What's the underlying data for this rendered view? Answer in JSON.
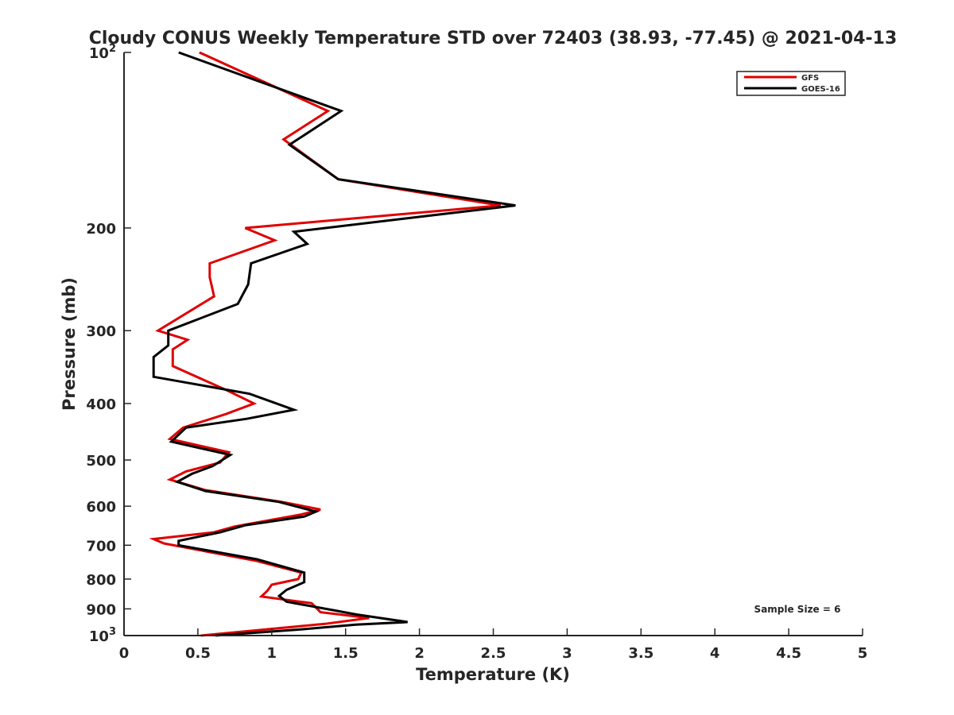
{
  "chart_data": {
    "type": "line",
    "title": "Cloudy CONUS Weekly Temperature STD over 72403 (38.93, -77.45) @ 2021-04-13",
    "xlabel": "Temperature (K)",
    "ylabel": "Pressure (mb)",
    "xlim": [
      0,
      5
    ],
    "ylim": [
      100,
      1000
    ],
    "yscale": "log",
    "y_reversed": true,
    "x_ticks": [
      "0",
      "0.5",
      "1",
      "1.5",
      "2",
      "2.5",
      "3",
      "3.5",
      "4",
      "4.5",
      "5"
    ],
    "y_ticks": [
      {
        "value": 100,
        "base": "10",
        "exp": "2"
      },
      {
        "value": 200,
        "label": "200"
      },
      {
        "value": 300,
        "label": "300"
      },
      {
        "value": 400,
        "label": "400"
      },
      {
        "value": 500,
        "label": "500"
      },
      {
        "value": 600,
        "label": "600"
      },
      {
        "value": 700,
        "label": "700"
      },
      {
        "value": 800,
        "label": "800"
      },
      {
        "value": 900,
        "label": "900"
      },
      {
        "value": 1000,
        "base": "10",
        "exp": "3"
      }
    ],
    "legend_position": "top-right",
    "grid": false,
    "annotation": "Sample Size = 6",
    "series": [
      {
        "name": "GFS",
        "color": "#e00000",
        "points": [
          [
            0.51,
            100
          ],
          [
            1.38,
            126
          ],
          [
            1.08,
            141
          ],
          [
            1.45,
            165
          ],
          [
            2.55,
            183
          ],
          [
            0.82,
            200
          ],
          [
            1.02,
            210
          ],
          [
            0.58,
            230
          ],
          [
            0.58,
            243
          ],
          [
            0.61,
            262
          ],
          [
            0.23,
            300
          ],
          [
            0.43,
            311
          ],
          [
            0.33,
            323
          ],
          [
            0.33,
            345
          ],
          [
            0.7,
            380
          ],
          [
            0.88,
            400
          ],
          [
            0.69,
            417
          ],
          [
            0.4,
            440
          ],
          [
            0.31,
            460
          ],
          [
            0.71,
            485
          ],
          [
            0.65,
            505
          ],
          [
            0.42,
            523
          ],
          [
            0.31,
            540
          ],
          [
            0.55,
            563
          ],
          [
            1.07,
            590
          ],
          [
            1.33,
            608
          ],
          [
            1.2,
            620
          ],
          [
            0.75,
            650
          ],
          [
            0.61,
            665
          ],
          [
            0.2,
            683
          ],
          [
            0.27,
            695
          ],
          [
            0.9,
            745
          ],
          [
            1.2,
            780
          ],
          [
            1.18,
            800
          ],
          [
            1.0,
            818
          ],
          [
            0.97,
            838
          ],
          [
            0.93,
            857
          ],
          [
            1.27,
            880
          ],
          [
            1.33,
            912
          ],
          [
            1.66,
            933
          ],
          [
            1.36,
            955
          ],
          [
            0.52,
            1000
          ]
        ]
      },
      {
        "name": "GOES-16",
        "color": "#000000",
        "points": [
          [
            0.37,
            100
          ],
          [
            1.47,
            126
          ],
          [
            1.12,
            144
          ],
          [
            1.45,
            165
          ],
          [
            2.65,
            183
          ],
          [
            1.15,
            203
          ],
          [
            1.24,
            213
          ],
          [
            0.86,
            230
          ],
          [
            0.84,
            250
          ],
          [
            0.77,
            270
          ],
          [
            0.3,
            300
          ],
          [
            0.3,
            318
          ],
          [
            0.2,
            333
          ],
          [
            0.2,
            360
          ],
          [
            0.85,
            385
          ],
          [
            1.15,
            410
          ],
          [
            0.83,
            425
          ],
          [
            0.42,
            440
          ],
          [
            0.32,
            465
          ],
          [
            0.72,
            490
          ],
          [
            0.6,
            512
          ],
          [
            0.46,
            528
          ],
          [
            0.36,
            545
          ],
          [
            0.55,
            565
          ],
          [
            1.05,
            590
          ],
          [
            1.3,
            613
          ],
          [
            1.22,
            625
          ],
          [
            0.82,
            647
          ],
          [
            0.65,
            665
          ],
          [
            0.37,
            688
          ],
          [
            0.37,
            700
          ],
          [
            0.9,
            740
          ],
          [
            1.22,
            780
          ],
          [
            1.22,
            810
          ],
          [
            1.1,
            835
          ],
          [
            1.05,
            855
          ],
          [
            1.1,
            875
          ],
          [
            1.43,
            906
          ],
          [
            1.57,
            920
          ],
          [
            1.92,
            948
          ],
          [
            1.57,
            958
          ],
          [
            1.22,
            975
          ],
          [
            0.62,
            1000
          ]
        ]
      }
    ]
  }
}
